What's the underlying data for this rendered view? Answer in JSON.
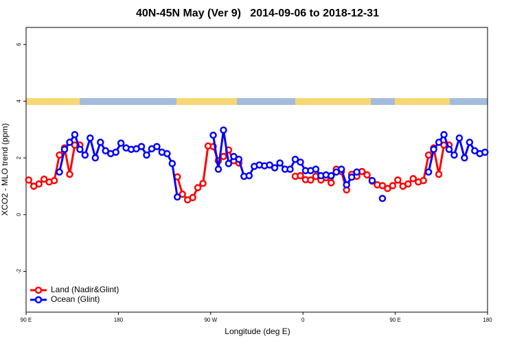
{
  "chart_data": {
    "type": "line",
    "title": "40N-45N May (Ver 9)   2014-09-06 to 2018-12-31",
    "x_label": "Longitude (deg E)",
    "y_label": "XCO2 - MLO trend (ppm)",
    "xlim": [
      90,
      540
    ],
    "xticks": [
      {
        "value": 90,
        "label": "90 E"
      },
      180,
      {
        "value": 270,
        "label": "90 W"
      },
      {
        "value": 360,
        "label": "0"
      },
      {
        "value": 450,
        "label": "90 E"
      },
      {
        "value": 540,
        "label": "180"
      }
    ],
    "ylim": [
      -3.44,
      6.6
    ],
    "yticks": [
      -2,
      0,
      2,
      4,
      6
    ],
    "legend": "bottom-left",
    "x": [
      92.5,
      97.5,
      102.5,
      107.5,
      112.5,
      117.5,
      122.5,
      127.5,
      132.5,
      137.5,
      142.5,
      147.5,
      152.5,
      157.5,
      162.5,
      167.5,
      172.5,
      177.5,
      182.5,
      187.5,
      192.5,
      197.5,
      202.5,
      207.5,
      212.5,
      217.5,
      222.5,
      227.5,
      232.5,
      237.5,
      242.5,
      247.5,
      252.5,
      257.5,
      262.5,
      267.5,
      272.5,
      277.5,
      282.5,
      287.5,
      292.5,
      297.5,
      302.5,
      307.5,
      312.5,
      317.5,
      322.5,
      327.5,
      332.5,
      337.5,
      342.5,
      347.5,
      352.5,
      357.5,
      362.5,
      367.5,
      372.5,
      377.5,
      382.5,
      387.5,
      392.5,
      397.5,
      402.5,
      407.5,
      412.5,
      417.5,
      422.5,
      427.5,
      432.5,
      437.5,
      442.5,
      447.5,
      452.5,
      457.5,
      462.5,
      467.5,
      472.5,
      477.5,
      482.5,
      487.5,
      492.5,
      497.5,
      502.5,
      507.5,
      512.5,
      517.5,
      522.5,
      527.5,
      532.5,
      537.5
    ],
    "series": [
      {
        "name": "Land (Nadir&Glint)",
        "color": "#ff0000",
        "values": [
          1.22,
          1.0,
          1.08,
          1.25,
          1.15,
          1.2,
          2.1,
          2.35,
          1.42,
          2.45,
          2.45,
          null,
          null,
          null,
          null,
          null,
          null,
          null,
          null,
          null,
          null,
          null,
          null,
          null,
          null,
          null,
          null,
          null,
          null,
          1.33,
          0.72,
          0.52,
          0.6,
          0.95,
          1.1,
          2.42,
          2.4,
          1.9,
          2.05,
          2.28,
          1.9,
          1.82,
          null,
          null,
          null,
          null,
          null,
          null,
          null,
          null,
          null,
          null,
          1.35,
          1.37,
          1.23,
          1.22,
          1.35,
          1.22,
          1.3,
          1.12,
          1.6,
          1.52,
          0.87,
          1.42,
          1.35,
          1.52,
          1.4,
          1.18,
          1.05,
          1.02,
          0.92,
          1.02,
          1.22,
          1.0,
          1.08,
          1.27,
          1.15,
          1.2,
          2.1,
          2.35,
          1.42,
          2.45,
          2.45,
          null,
          null,
          null,
          null,
          null,
          null,
          null
        ]
      },
      {
        "name": "Ocean (Glint)",
        "color": "#0000ff",
        "values": [
          null,
          null,
          null,
          null,
          null,
          null,
          1.5,
          2.3,
          2.55,
          2.82,
          2.3,
          2.1,
          2.7,
          2.0,
          2.55,
          2.25,
          2.15,
          2.2,
          2.52,
          2.35,
          2.3,
          2.32,
          2.4,
          2.1,
          2.32,
          2.4,
          2.2,
          2.15,
          1.8,
          0.62,
          null,
          null,
          null,
          null,
          null,
          null,
          2.8,
          1.6,
          2.98,
          1.8,
          2.05,
          1.95,
          1.35,
          1.37,
          1.7,
          1.75,
          1.72,
          1.75,
          1.65,
          1.82,
          1.6,
          1.6,
          1.95,
          1.85,
          1.55,
          1.55,
          1.6,
          1.37,
          1.4,
          1.37,
          1.5,
          1.6,
          1.05,
          1.32,
          1.5,
          null,
          null,
          1.2,
          null,
          0.57,
          null,
          null,
          null,
          null,
          null,
          null,
          null,
          null,
          1.5,
          2.3,
          2.55,
          2.82,
          2.3,
          2.1,
          2.7,
          2.0,
          2.55,
          2.25,
          2.15,
          2.2
        ]
      }
    ]
  }
}
